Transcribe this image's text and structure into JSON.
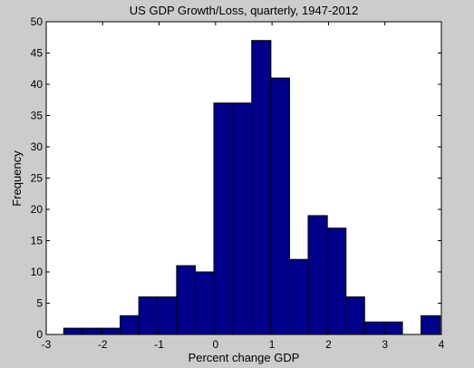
{
  "chart_data": {
    "type": "bar",
    "title": "US GDP Growth/Loss, quarterly, 1947-2012",
    "xlabel": "Percent change GDP",
    "ylabel": "Frequency",
    "xlim": [
      -3,
      4
    ],
    "ylim": [
      0,
      50
    ],
    "xticks": [
      "-3",
      "-2",
      "-1",
      "0",
      "1",
      "2",
      "3",
      "4"
    ],
    "yticks": [
      "0",
      "5",
      "10",
      "15",
      "20",
      "25",
      "30",
      "35",
      "40",
      "45",
      "50"
    ],
    "grid": false,
    "bins": [
      {
        "x0": -2.69,
        "x1": -2.36,
        "value": 1
      },
      {
        "x0": -2.36,
        "x1": -2.03,
        "value": 1
      },
      {
        "x0": -2.03,
        "x1": -1.69,
        "value": 1
      },
      {
        "x0": -1.69,
        "x1": -1.36,
        "value": 3
      },
      {
        "x0": -1.36,
        "x1": -1.03,
        "value": 6
      },
      {
        "x0": -1.03,
        "x1": -0.69,
        "value": 6
      },
      {
        "x0": -0.69,
        "x1": -0.36,
        "value": 11
      },
      {
        "x0": -0.36,
        "x1": -0.03,
        "value": 10
      },
      {
        "x0": -0.03,
        "x1": 0.31,
        "value": 37
      },
      {
        "x0": 0.31,
        "x1": 0.64,
        "value": 37
      },
      {
        "x0": 0.64,
        "x1": 0.98,
        "value": 47
      },
      {
        "x0": 0.98,
        "x1": 1.31,
        "value": 41
      },
      {
        "x0": 1.31,
        "x1": 1.64,
        "value": 12
      },
      {
        "x0": 1.64,
        "x1": 1.98,
        "value": 19
      },
      {
        "x0": 1.98,
        "x1": 2.31,
        "value": 17
      },
      {
        "x0": 2.31,
        "x1": 2.64,
        "value": 6
      },
      {
        "x0": 2.64,
        "x1": 2.98,
        "value": 2
      },
      {
        "x0": 2.98,
        "x1": 3.31,
        "value": 2
      },
      {
        "x0": 3.31,
        "x1": 3.64,
        "value": 0
      },
      {
        "x0": 3.64,
        "x1": 3.98,
        "value": 3
      }
    ],
    "colors": {
      "bar_fill": "#00008b",
      "bar_edge": "#000000",
      "background": "#cccccc",
      "plot_background": "#ffffff"
    }
  }
}
